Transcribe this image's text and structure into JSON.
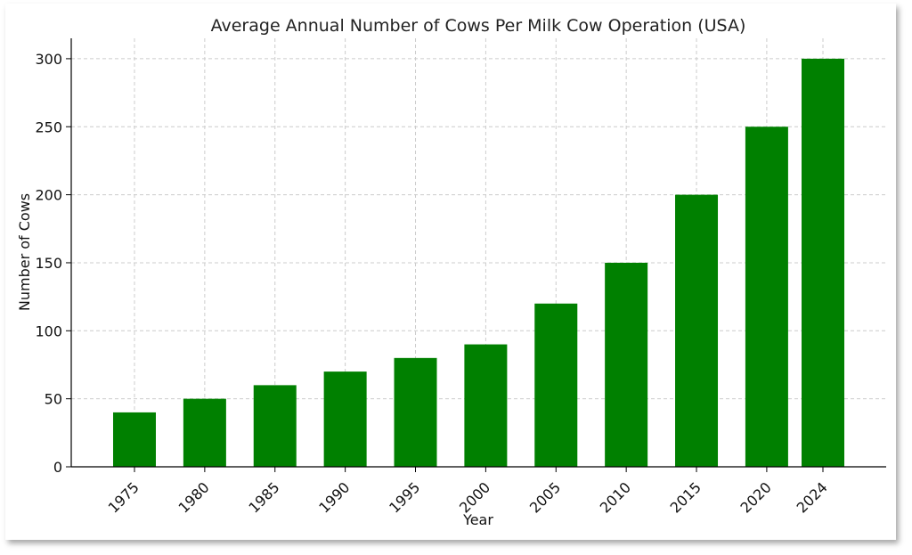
{
  "chart_data": {
    "type": "bar",
    "title": "Average Annual Number of Cows Per Milk Cow Operation (USA)",
    "xlabel": "Year",
    "ylabel": "Number of Cows",
    "categories": [
      "1975",
      "1980",
      "1985",
      "1990",
      "1995",
      "2000",
      "2005",
      "2010",
      "2015",
      "2020",
      "2024"
    ],
    "x": [
      1975,
      1980,
      1985,
      1990,
      1995,
      2000,
      2005,
      2010,
      2015,
      2020,
      2024
    ],
    "values": [
      40,
      50,
      60,
      70,
      80,
      90,
      120,
      150,
      200,
      250,
      300
    ],
    "ylim": [
      0,
      315
    ],
    "yticks": [
      0,
      50,
      100,
      150,
      200,
      250,
      300
    ],
    "grid": true,
    "bar_color": "#008000"
  }
}
